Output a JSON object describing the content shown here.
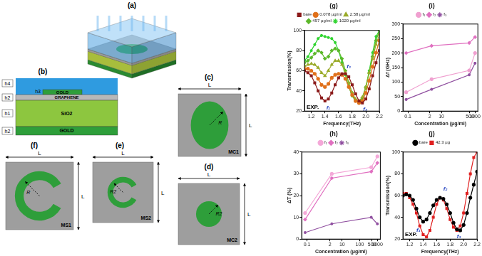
{
  "chart_data": [
    {
      "type": "line",
      "title": "(g)",
      "x_label": "Frequency(THz)",
      "y_label": "Transmission(%)",
      "x": [
        1.1,
        1.15,
        1.2,
        1.25,
        1.3,
        1.35,
        1.4,
        1.45,
        1.5,
        1.55,
        1.6,
        1.65,
        1.7,
        1.75,
        1.8,
        1.85,
        1.9,
        1.95,
        2.0,
        2.05,
        2.1,
        2.15,
        2.2
      ],
      "xlim": [
        1.1,
        2.2
      ],
      "xticks": [
        1.2,
        1.4,
        1.6,
        1.8,
        {
          "value": 2,
          "label": "2.0"
        },
        2.2
      ],
      "ylim": [
        20,
        100
      ],
      "yticks": [
        20,
        40,
        60,
        80,
        100
      ],
      "grid": false,
      "legend": "top",
      "series": [
        {
          "name": "bare",
          "color": "#8b1a1a",
          "marker": "square",
          "values": [
            60,
            58,
            55,
            48,
            40,
            33,
            30,
            32,
            38,
            46,
            53,
            57,
            57,
            54,
            46,
            37,
            30,
            28,
            32,
            42,
            55,
            68,
            80
          ]
        },
        {
          "name": "0.078 μg/ml",
          "color": "#e0701a",
          "marker": "circle",
          "values": [
            62,
            62,
            60,
            57,
            52,
            46,
            44,
            47,
            53,
            56,
            57,
            56,
            52,
            44,
            36,
            30,
            28,
            30,
            38,
            50,
            64,
            78,
            90
          ]
        },
        {
          "name": "2.58 μg/ml",
          "color": "#9aab2a",
          "marker": "triangle",
          "values": [
            65,
            66,
            67,
            66,
            63,
            58,
            55,
            60,
            66,
            70,
            70,
            66,
            58,
            48,
            38,
            32,
            30,
            34,
            44,
            58,
            72,
            86,
            96
          ]
        },
        {
          "name": "457 μg/ml",
          "color": "#5cb82a",
          "marker": "diamond",
          "values": [
            68,
            70,
            73,
            77,
            80,
            78,
            72,
            74,
            80,
            82,
            80,
            72,
            60,
            48,
            38,
            31,
            29,
            33,
            43,
            58,
            74,
            90,
            100
          ]
        },
        {
          "name": "1020 μg/ml",
          "color": "#2fd42f",
          "marker": "star",
          "values": [
            70,
            74,
            80,
            86,
            92,
            95,
            94,
            93,
            92,
            88,
            80,
            68,
            56,
            44,
            35,
            30,
            28,
            32,
            44,
            60,
            78,
            94,
            100
          ]
        }
      ],
      "annotations": [
        {
          "text": "f₁",
          "x": 1.42,
          "y": 23,
          "color": "#1f3fbf"
        },
        {
          "text": "f₂",
          "x": 1.72,
          "y": 64,
          "color": "#1f3fbf"
        },
        {
          "text": "f₃",
          "x": 1.96,
          "y": 22,
          "color": "#1f3fbf"
        },
        {
          "text": "EXP.",
          "x": 1.13,
          "y": 24,
          "color": "#000000"
        }
      ]
    },
    {
      "type": "line",
      "title": "(i)",
      "x_label": "Concentration (μg/ml)",
      "y_label": "Δf (GHz)",
      "x": [
        0.078,
        2.58,
        457,
        1020
      ],
      "log": "x",
      "xlim": [
        0.05,
        1500
      ],
      "xticks": [
        0.1,
        2,
        10,
        500,
        1000
      ],
      "ylim": [
        0,
        300
      ],
      "yticks": [
        0,
        50,
        100,
        150,
        200,
        250,
        300
      ],
      "grid": false,
      "legend": "top",
      "series": [
        {
          "name": "f₁",
          "color": "#f0a0d0",
          "marker": "circle",
          "values": [
            65,
            110,
            140,
            200
          ]
        },
        {
          "name": "f₂",
          "color": "#e070c0",
          "marker": "diamond",
          "values": [
            200,
            225,
            235,
            255
          ]
        },
        {
          "name": "f₃",
          "color": "#9050a0",
          "marker": "star",
          "values": [
            40,
            75,
            125,
            165
          ]
        }
      ]
    },
    {
      "type": "line",
      "title": "(h)",
      "x_label": "Concentration (μg/ml)",
      "y_label": "ΔT (%)",
      "x": [
        0.078,
        2.58,
        457,
        1020
      ],
      "log": "x",
      "xlim": [
        0.05,
        1500
      ],
      "xticks": [
        0.1,
        2,
        10,
        100,
        500,
        1000
      ],
      "ylim": [
        0,
        40
      ],
      "yticks": [
        0,
        10,
        20,
        30,
        40
      ],
      "grid": false,
      "legend": "top",
      "series": [
        {
          "name": "f₁",
          "color": "#f4a8d8",
          "marker": "circle",
          "values": [
            12,
            30,
            33,
            38
          ]
        },
        {
          "name": "f₂",
          "color": "#e070c0",
          "marker": "diamond",
          "values": [
            9,
            28,
            31,
            35
          ]
        },
        {
          "name": "f₃",
          "color": "#9050a0",
          "marker": "star",
          "values": [
            3,
            7,
            10,
            7
          ]
        }
      ]
    },
    {
      "type": "line",
      "title": "(j)",
      "x_label": "Frequency(THz)",
      "y_label": "Transmission(%)",
      "x": [
        1.1,
        1.15,
        1.2,
        1.25,
        1.3,
        1.35,
        1.4,
        1.45,
        1.5,
        1.55,
        1.6,
        1.65,
        1.7,
        1.75,
        1.8,
        1.85,
        1.9,
        1.95,
        2.0,
        2.05,
        2.1,
        2.15,
        2.2
      ],
      "xlim": [
        1.1,
        2.2
      ],
      "xticks": [
        1.2,
        1.4,
        1.6,
        1.8,
        {
          "value": 2,
          "label": "2.0"
        },
        2.2
      ],
      "ylim": [
        20,
        100
      ],
      "yticks": [
        20,
        40,
        60,
        80,
        100
      ],
      "grid": false,
      "legend": "top",
      "series": [
        {
          "name": "bare",
          "color": "#000000",
          "marker": "circle",
          "values": [
            60,
            61,
            60,
            56,
            48,
            40,
            36,
            38,
            44,
            51,
            56,
            58,
            57,
            52,
            44,
            35,
            29,
            28,
            33,
            44,
            58,
            70,
            82
          ]
        },
        {
          "name": "42.3 μg",
          "color": "#e02020",
          "marker": "square",
          "values": [
            62,
            62,
            58,
            52,
            44,
            32,
            24,
            22,
            28,
            40,
            52,
            58,
            56,
            48,
            38,
            31,
            28,
            32,
            44,
            62,
            80,
            95,
            100
          ]
        }
      ],
      "annotations": [
        {
          "text": "f₁",
          "x": 1.3,
          "y": 28,
          "color": "#1f3fbf"
        },
        {
          "text": "f₂",
          "x": 1.7,
          "y": 66,
          "color": "#1f3fbf"
        },
        {
          "text": "f₃",
          "x": 1.9,
          "y": 22,
          "color": "#1f3fbf"
        },
        {
          "text": "EXP.",
          "x": 1.13,
          "y": 24,
          "color": "#000000"
        }
      ]
    }
  ],
  "diagram": {
    "panels": [
      {
        "label": "(a)"
      },
      {
        "label": "(b)",
        "cover_thickness": "h4",
        "layers": [
          {
            "name": "GOLD",
            "thickness": "h3"
          },
          {
            "name": "GRAPHENE",
            "thickness": "h2"
          },
          {
            "name": "SiO2",
            "thickness": "h1"
          },
          {
            "name": "GOLD",
            "thickness": "h2"
          }
        ]
      },
      {
        "label": "(c)",
        "shape": "ellipse",
        "unit": "MC1",
        "radius": "R",
        "period": "L"
      },
      {
        "label": "(d)",
        "shape": "circle",
        "unit": "MC2",
        "radius": "R2",
        "period": "L"
      },
      {
        "label": "(e)",
        "shape": "split_ring",
        "unit": "MS2",
        "radius": "R2",
        "period": "L"
      },
      {
        "label": "(f)",
        "shape": "split_ring",
        "unit": "MS1",
        "radius": "R",
        "period": "L"
      }
    ]
  }
}
